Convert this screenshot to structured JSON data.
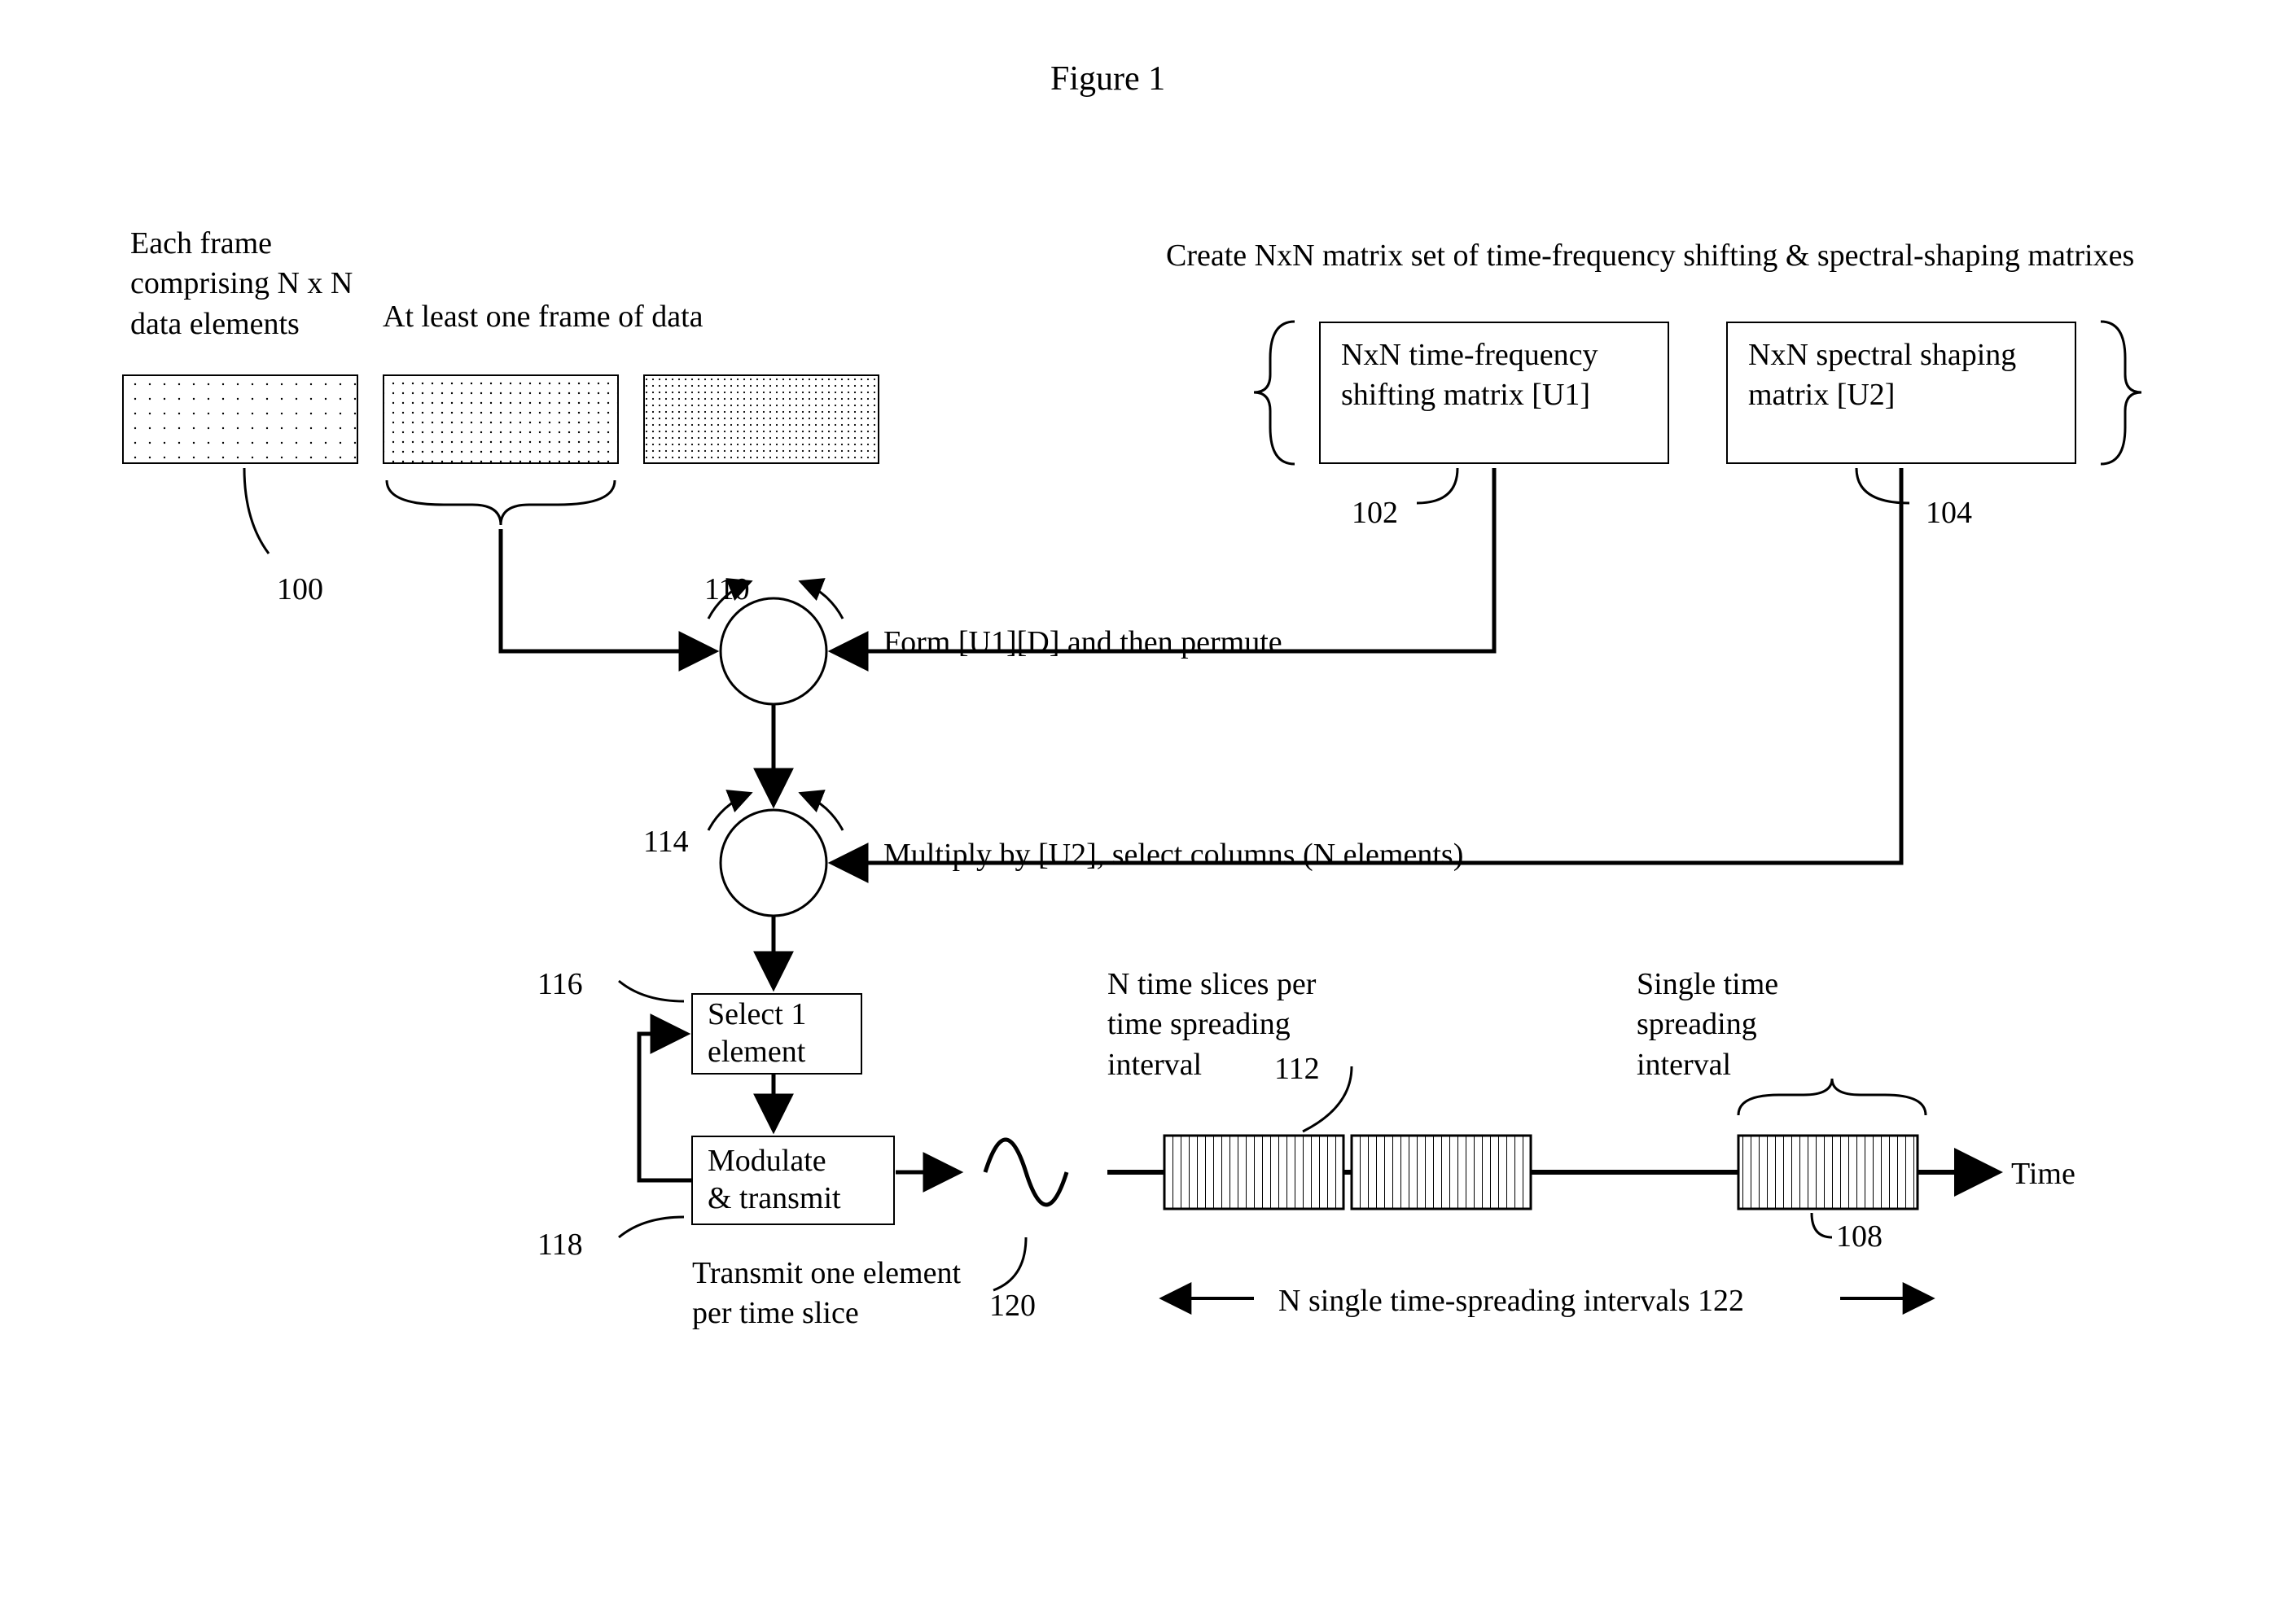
{
  "title": "Figure 1",
  "diagram": {
    "type": "flowchart",
    "background_color": "#ffffff",
    "stroke_color": "#000000",
    "font_family": "Times New Roman",
    "font_size_pt": 28,
    "frames_caption": "Each frame\ncomprising N x N\ndata elements",
    "frames_heading": "At least one frame of data",
    "frames": [
      {
        "label": "Data frame 1",
        "pattern": "sparse-dots"
      },
      {
        "label": "Data frame 2",
        "pattern": "medium-dots"
      },
      {
        "label": "Data frame 3",
        "pattern": "dense-dots"
      }
    ],
    "matrix_set_heading": "Create NxN matrix set of time-frequency shifting & spectral-shaping matrixes",
    "matrix_boxes": [
      {
        "label": "NxN time-frequency\nshifting matrix  [U1]",
        "ref": "102"
      },
      {
        "label": "NxN spectral shaping\nmatrix  [U2]",
        "ref": "104"
      }
    ],
    "circle_steps": [
      {
        "ref": "110",
        "caption": "Form [U1][D] and then permute"
      },
      {
        "ref": "114",
        "caption": "Multiply by [U2], select columns (N elements)"
      }
    ],
    "process_boxes": [
      {
        "label": "Select 1\nelement",
        "ref": "116"
      },
      {
        "label": "Modulate\n& transmit",
        "ref": "118"
      }
    ],
    "bottom_caption": "Transmit one element\nper time slice",
    "sine_ref": "120",
    "timeline": {
      "axis_label": "Time",
      "slices_label": "N time slices per\ntime spreading\ninterval",
      "slices_ref": "112",
      "single_interval_label": "Single time\nspreading\ninterval",
      "single_ref": "108",
      "spread_label": "N single time-spreading intervals 122",
      "bar_fill": "#ffffff",
      "bar_stroke": "#000000",
      "slices_per_bar": 18
    },
    "ref_labels": {
      "data_frames": "100"
    }
  }
}
